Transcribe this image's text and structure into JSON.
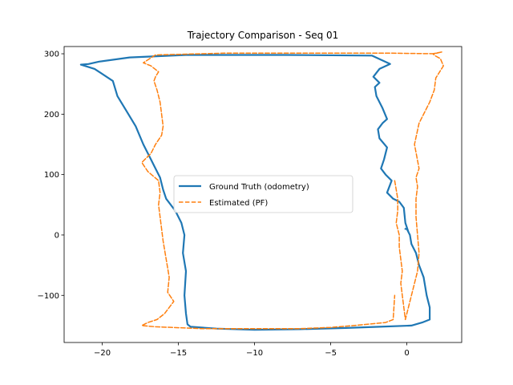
{
  "chart_data": {
    "type": "line",
    "title": "Trajectory Comparison - Seq 01",
    "xlabel": "",
    "ylabel": "",
    "xlim": [
      -22.5,
      3.6
    ],
    "ylim": [
      -178,
      312
    ],
    "xticks": [
      -20,
      -15,
      -10,
      -5,
      0
    ],
    "xtick_labels": [
      "−20",
      "−15",
      "−10",
      "−5",
      "0"
    ],
    "yticks": [
      -100,
      0,
      100,
      200,
      300
    ],
    "ytick_labels": [
      "−100",
      "0",
      "100",
      "200",
      "300"
    ],
    "grid": false,
    "legend": "center",
    "series": [
      {
        "name": "Ground Truth (odometry)",
        "color": "#1f77b4",
        "style": "solid",
        "x": [
          0.1,
          -0.1,
          -0.2,
          -0.5,
          -0.9,
          -1.3,
          -1.0,
          -1.4,
          -1.7,
          -1.5,
          -1.3,
          -1.8,
          -1.9,
          -1.6,
          -1.3,
          -1.6,
          -2.0,
          -2.1,
          -1.8,
          -2.2,
          -1.8,
          -1.1,
          -2.3,
          -8.0,
          -14.5,
          -18.2,
          -20.2,
          -20.9,
          -21.4,
          -20.5,
          -19.3,
          -19.0,
          -18.4,
          -17.8,
          -17.3,
          -16.8,
          -16.5,
          -16.2,
          -16.0,
          -15.8,
          -15.2,
          -14.8,
          -14.6,
          -14.7,
          -14.5,
          -14.6,
          -14.5,
          -14.4,
          -14.2,
          -12.5,
          -10.0,
          -7.0,
          -4.0,
          -1.8,
          0.3,
          1.0,
          1.5,
          1.5,
          1.3,
          1.1,
          0.8,
          0.6,
          0.3,
          0.2,
          0.1,
          0.0,
          -0.1
        ],
        "y": [
          5,
          20,
          45,
          55,
          60,
          70,
          90,
          100,
          110,
          125,
          145,
          160,
          175,
          185,
          192,
          210,
          230,
          245,
          252,
          262,
          275,
          283,
          297,
          298,
          298,
          294,
          287,
          283,
          282,
          275,
          255,
          230,
          205,
          180,
          150,
          125,
          110,
          95,
          75,
          60,
          40,
          20,
          0,
          -30,
          -60,
          -100,
          -130,
          -148,
          -152,
          -155,
          -157,
          -156,
          -154,
          -152,
          -150,
          -145,
          -140,
          -120,
          -100,
          -70,
          -50,
          -30,
          -15,
          0,
          5,
          10,
          10
        ]
      },
      {
        "name": "Estimated (PF)",
        "color": "#ff7f0e",
        "style": "dashed",
        "x": [
          -0.8,
          -0.6,
          -0.6,
          -0.7,
          -0.5,
          -0.5,
          -0.4,
          -0.3,
          -0.4,
          -0.3,
          -0.2,
          -0.1,
          0.3,
          0.7,
          0.8,
          0.7,
          0.6,
          0.6,
          0.7,
          0.6,
          0.8,
          0.5,
          0.8,
          1.5,
          1.8,
          1.9,
          2.4,
          2.2,
          1.9,
          1.7,
          2.3,
          1.8,
          -1.0,
          -6.0,
          -12.0,
          -16.5,
          -17.3,
          -16.8,
          -16.3,
          -16.5,
          -16.6,
          -16.4,
          -16.2,
          -16.1,
          -16.0,
          -16.1,
          -16.5,
          -16.8,
          -17.2,
          -17.4,
          -17.0,
          -16.3,
          -16.2,
          -16.3,
          -16.2,
          -16.1,
          -16.0,
          -15.8,
          -15.6,
          -15.7,
          -15.3,
          -15.6,
          -15.9,
          -16.4,
          -17.0,
          -17.4,
          -16.5,
          -13.5,
          -10.0,
          -7.0,
          -5.0,
          -3.5,
          -1.4,
          -0.9,
          -0.8
        ],
        "y": [
          90,
          60,
          40,
          20,
          0,
          -20,
          -40,
          -60,
          -80,
          -100,
          -120,
          -140,
          -100,
          -60,
          -30,
          0,
          30,
          60,
          80,
          95,
          110,
          150,
          185,
          220,
          240,
          260,
          280,
          292,
          296,
          300,
          303,
          300,
          301,
          301,
          301,
          298,
          285,
          280,
          270,
          262,
          255,
          240,
          220,
          200,
          180,
          165,
          150,
          135,
          125,
          120,
          105,
          90,
          70,
          50,
          30,
          10,
          -10,
          -40,
          -70,
          -95,
          -110,
          -120,
          -130,
          -140,
          -145,
          -150,
          -152,
          -155,
          -155,
          -155,
          -153,
          -150,
          -145,
          -140,
          -100
        ]
      }
    ]
  }
}
